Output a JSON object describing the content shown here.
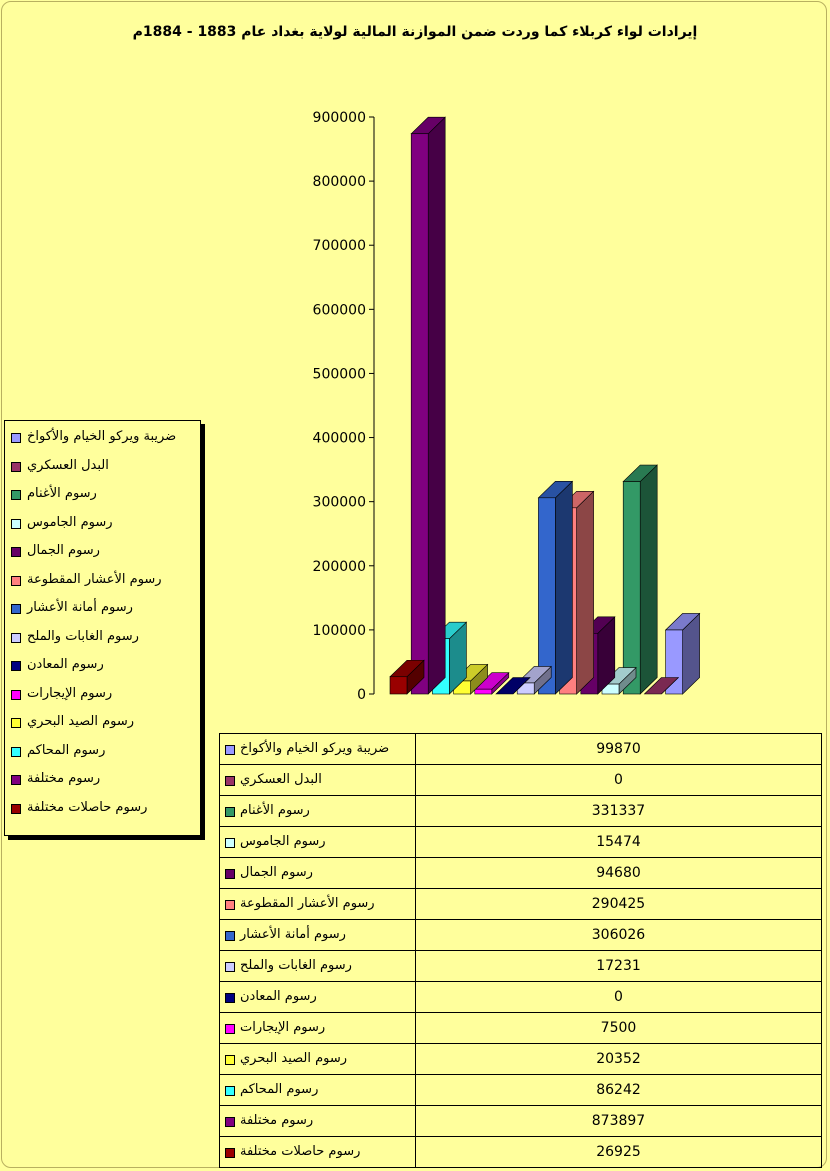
{
  "chart_data": {
    "type": "bar",
    "title": "إيرادات لواء كربلاء كما وردت ضمن الموازنة المالية لولاية بغداد عام 1883 - 1884م",
    "ylim": [
      0,
      900000
    ],
    "yticks": [
      0,
      100000,
      200000,
      300000,
      400000,
      500000,
      600000,
      700000,
      800000,
      900000
    ],
    "grid": false,
    "legend_position": "left",
    "series": [
      {
        "name": "رسوم حاصلات مختلفة",
        "value": 26925,
        "color": "#990000"
      },
      {
        "name": "رسوم مختلفة",
        "value": 873897,
        "color": "#800080"
      },
      {
        "name": "رسوم المحاكم",
        "value": 86242,
        "color": "#33ffff"
      },
      {
        "name": "رسوم الصيد البحري",
        "value": 20352,
        "color": "#ffff33"
      },
      {
        "name": "رسوم الإيجارات",
        "value": 7500,
        "color": "#ff00ff"
      },
      {
        "name": "رسوم المعادن",
        "value": 0,
        "color": "#000080"
      },
      {
        "name": "رسوم الغابات والملح",
        "value": 17231,
        "color": "#ccccff"
      },
      {
        "name": "رسوم أمانة الأعشار",
        "value": 306026,
        "color": "#3366cc"
      },
      {
        "name": "رسوم الأعشار المقطوعة",
        "value": 290425,
        "color": "#ff8080"
      },
      {
        "name": "رسوم الجمال",
        "value": 94680,
        "color": "#660066"
      },
      {
        "name": "رسوم الجاموس",
        "value": 15474,
        "color": "#ccffff"
      },
      {
        "name": "رسوم الأغنام",
        "value": 331337,
        "color": "#339966"
      },
      {
        "name": "البدل العسكري",
        "value": 0,
        "color": "#993366"
      },
      {
        "name": "ضريبة ويركو الخيام والأكواخ",
        "value": 99870,
        "color": "#9999ff"
      }
    ]
  }
}
